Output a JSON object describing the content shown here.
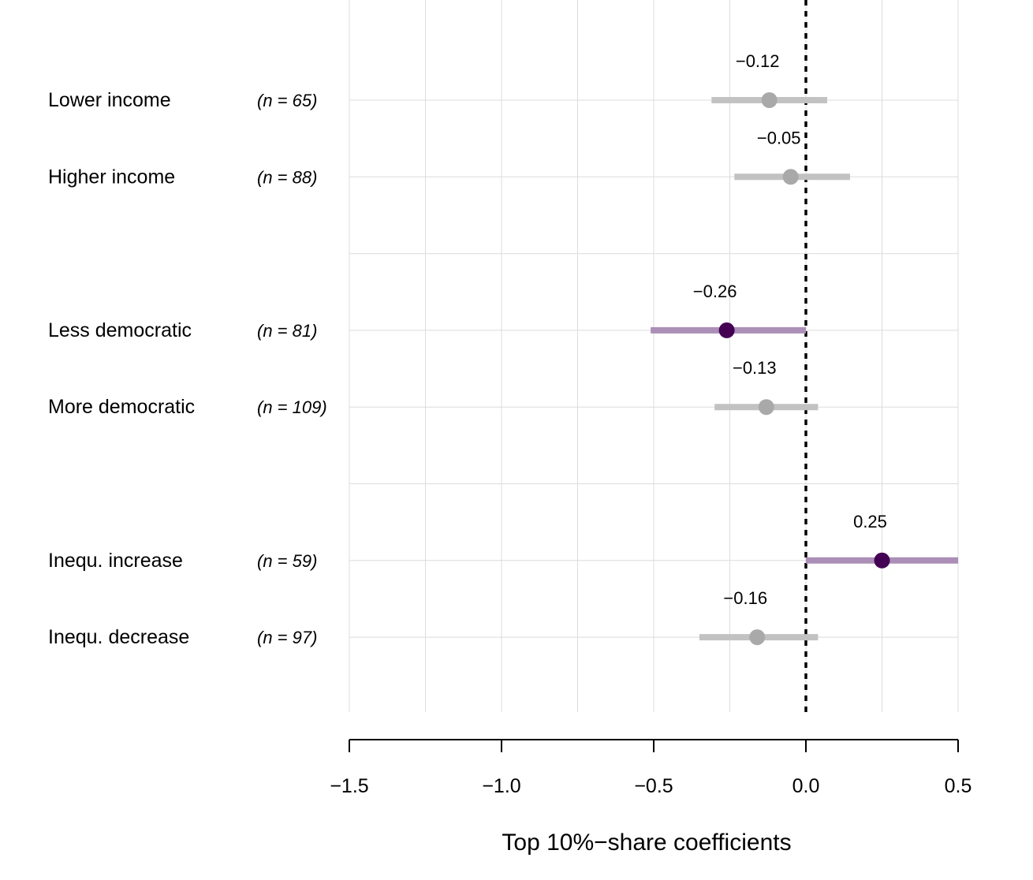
{
  "chart_data": {
    "type": "scatter",
    "subtype": "coefficient-plot",
    "xlabel": "Top 10%−share coefficients",
    "xlim": [
      -1.5,
      0.5
    ],
    "xticks": [
      -1.5,
      -1.0,
      -0.5,
      0.0,
      0.5
    ],
    "xtick_labels": [
      "−1.5",
      "−1.0",
      "−0.5",
      "0.0",
      "0.5"
    ],
    "reference_line": 0.0,
    "grid": true,
    "colors": {
      "significant_point": "#440154",
      "significant_interval": "#ab8fb6",
      "nonsignificant_point": "#a9a9a9",
      "nonsignificant_interval": "#c2c2c2"
    },
    "rows": [
      {
        "label": "Lower income",
        "n": "(n = 65)",
        "estimate": -0.12,
        "estimate_label": "−0.12",
        "ci": [
          -0.31,
          0.07
        ],
        "significant": false,
        "group": 1
      },
      {
        "label": "Higher income",
        "n": "(n = 88)",
        "estimate": -0.05,
        "estimate_label": "−0.05",
        "ci": [
          -0.235,
          0.145
        ],
        "significant": false,
        "group": 1
      },
      {
        "label": "Less democratic",
        "n": "(n = 81)",
        "estimate": -0.26,
        "estimate_label": "−0.26",
        "ci": [
          -0.51,
          0.0
        ],
        "significant": true,
        "group": 2
      },
      {
        "label": "More democratic",
        "n": "(n = 109)",
        "estimate": -0.13,
        "estimate_label": "−0.13",
        "ci": [
          -0.3,
          0.04
        ],
        "significant": false,
        "group": 2
      },
      {
        "label": "Inequ. increase",
        "n": "(n = 59)",
        "estimate": 0.25,
        "estimate_label": "0.25",
        "ci": [
          0.0,
          0.5
        ],
        "significant": true,
        "group": 3
      },
      {
        "label": "Inequ. decrease",
        "n": "(n = 97)",
        "estimate": -0.16,
        "estimate_label": "−0.16",
        "ci": [
          -0.35,
          0.04
        ],
        "significant": false,
        "group": 3
      }
    ]
  }
}
